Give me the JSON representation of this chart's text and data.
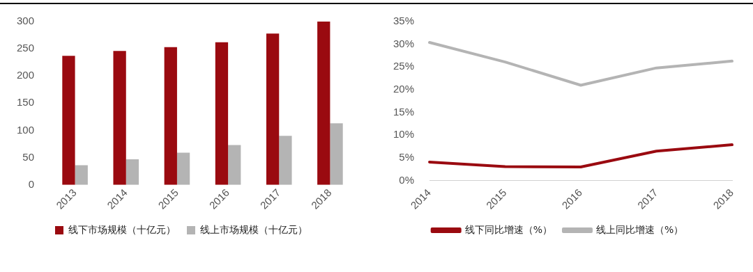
{
  "chart_data": [
    {
      "type": "bar",
      "categories": [
        "2013",
        "2014",
        "2015",
        "2016",
        "2017",
        "2018"
      ],
      "series": [
        {
          "name": "线下市场规模（十亿元）",
          "color": "#9a0a10",
          "values": [
            237,
            246,
            253,
            262,
            278,
            300
          ]
        },
        {
          "name": "线上市场规模（十亿元）",
          "color": "#b4b4b4",
          "values": [
            36,
            47,
            59,
            73,
            90,
            113
          ]
        }
      ],
      "ylim": [
        0,
        300
      ],
      "yticks": [
        0,
        50,
        100,
        150,
        200,
        250,
        300
      ],
      "grid": false,
      "legend": "bottom"
    },
    {
      "type": "line",
      "categories": [
        "2014",
        "2015",
        "2016",
        "2017",
        "2018"
      ],
      "series": [
        {
          "name": "线下同比增速（%）",
          "color": "#9a0a10",
          "values": [
            4.1,
            3.1,
            3.0,
            6.5,
            7.9
          ]
        },
        {
          "name": "线上同比增速（%）",
          "color": "#b4b4b4",
          "values": [
            30.4,
            26.1,
            21.0,
            24.8,
            26.3
          ]
        }
      ],
      "ylim": [
        0,
        35
      ],
      "yticks": [
        {
          "value": 0,
          "label": "0%"
        },
        {
          "value": 5,
          "label": "5%"
        },
        {
          "value": 10,
          "label": "10%"
        },
        {
          "value": 15,
          "label": "15%"
        },
        {
          "value": 20,
          "label": "20%"
        },
        {
          "value": 25,
          "label": "25%"
        },
        {
          "value": 30,
          "label": "30%"
        },
        {
          "value": 35,
          "label": "35%"
        }
      ],
      "grid": false,
      "legend": "bottom",
      "marker": "none",
      "line_style": "solid"
    }
  ]
}
